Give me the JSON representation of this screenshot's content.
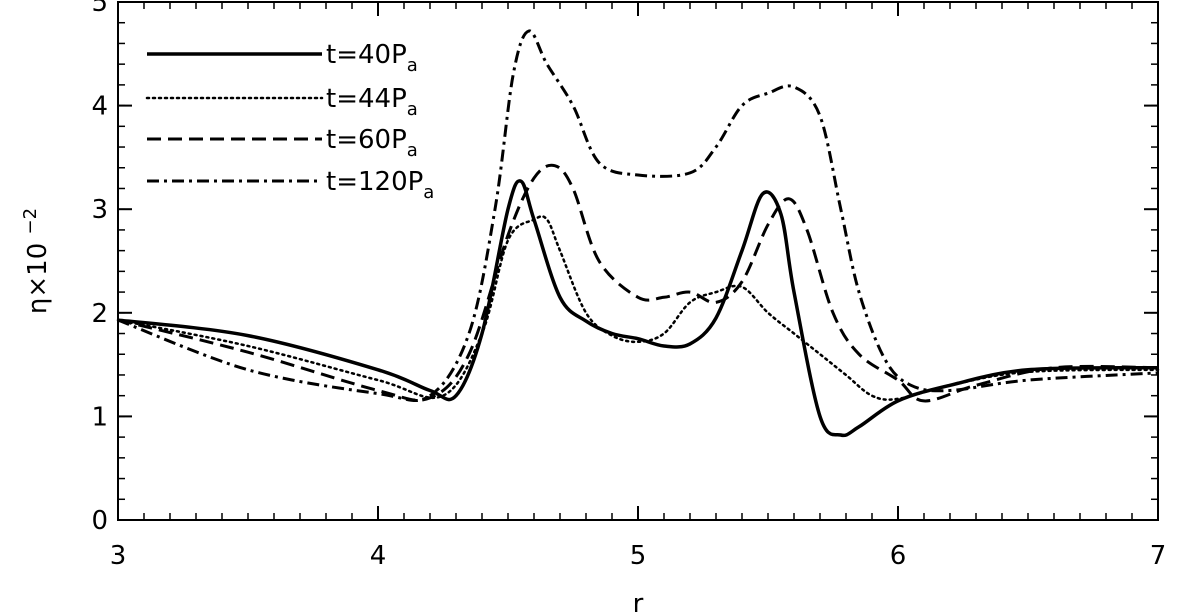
{
  "chart_data": {
    "type": "line",
    "xlabel": "r",
    "ylabel": "η×10",
    "ylabel_exponent": "−2",
    "xlim": [
      3,
      7
    ],
    "ylim": [
      0,
      5
    ],
    "xticks": [
      "3",
      "4",
      "5",
      "6",
      "7"
    ],
    "yticks": [
      "0",
      "1",
      "2",
      "3",
      "4",
      "5"
    ],
    "legend_position": "top-left",
    "grid": false,
    "series": [
      {
        "name": "t=40P",
        "name_sub": "a",
        "style": "solid",
        "x": [
          3.0,
          3.5,
          4.0,
          4.2,
          4.3,
          4.4,
          4.5,
          4.55,
          4.6,
          4.7,
          4.8,
          4.9,
          5.0,
          5.1,
          5.2,
          5.3,
          5.4,
          5.48,
          5.55,
          5.6,
          5.7,
          5.78,
          5.85,
          6.0,
          6.2,
          6.5,
          7.0
        ],
        "y": [
          1.93,
          1.78,
          1.45,
          1.25,
          1.2,
          1.8,
          3.0,
          3.27,
          2.9,
          2.15,
          1.92,
          1.8,
          1.75,
          1.68,
          1.7,
          1.95,
          2.6,
          3.15,
          2.95,
          2.2,
          1.0,
          0.82,
          0.9,
          1.15,
          1.3,
          1.45,
          1.47
        ]
      },
      {
        "name": "t=44P",
        "name_sub": "a",
        "style": "dotted",
        "x": [
          3.0,
          3.5,
          4.0,
          4.25,
          4.4,
          4.5,
          4.6,
          4.65,
          4.7,
          4.8,
          4.9,
          5.0,
          5.1,
          5.2,
          5.3,
          5.4,
          5.5,
          5.6,
          5.7,
          5.8,
          5.9,
          6.0,
          6.2,
          6.5,
          7.0
        ],
        "y": [
          1.93,
          1.68,
          1.35,
          1.2,
          1.8,
          2.7,
          2.9,
          2.9,
          2.6,
          2.0,
          1.78,
          1.72,
          1.8,
          2.1,
          2.2,
          2.25,
          2.0,
          1.8,
          1.6,
          1.4,
          1.2,
          1.17,
          1.3,
          1.43,
          1.45
        ]
      },
      {
        "name": "t=60P",
        "name_sub": "a",
        "style": "dashed",
        "x": [
          3.0,
          3.5,
          4.0,
          4.2,
          4.35,
          4.5,
          4.6,
          4.68,
          4.75,
          4.85,
          5.0,
          5.1,
          5.2,
          5.3,
          5.4,
          5.5,
          5.58,
          5.65,
          5.75,
          5.85,
          6.0,
          6.1,
          6.3,
          6.6,
          7.0
        ],
        "y": [
          1.93,
          1.62,
          1.25,
          1.18,
          1.6,
          2.75,
          3.3,
          3.42,
          3.2,
          2.5,
          2.15,
          2.15,
          2.2,
          2.1,
          2.3,
          2.85,
          3.1,
          2.8,
          2.0,
          1.6,
          1.35,
          1.15,
          1.3,
          1.47,
          1.47
        ]
      },
      {
        "name": "t=120P",
        "name_sub": "a",
        "style": "dashdot",
        "x": [
          3.0,
          3.5,
          4.0,
          4.2,
          4.35,
          4.45,
          4.52,
          4.58,
          4.65,
          4.75,
          4.85,
          5.0,
          5.2,
          5.3,
          5.4,
          5.5,
          5.6,
          5.7,
          5.78,
          5.85,
          5.95,
          6.05,
          6.2,
          6.5,
          7.0
        ],
        "y": [
          1.93,
          1.45,
          1.22,
          1.2,
          1.8,
          3.0,
          4.3,
          4.72,
          4.4,
          4.0,
          3.45,
          3.33,
          3.35,
          3.6,
          4.0,
          4.12,
          4.18,
          3.9,
          3.0,
          2.2,
          1.55,
          1.3,
          1.25,
          1.35,
          1.42
        ]
      }
    ]
  }
}
